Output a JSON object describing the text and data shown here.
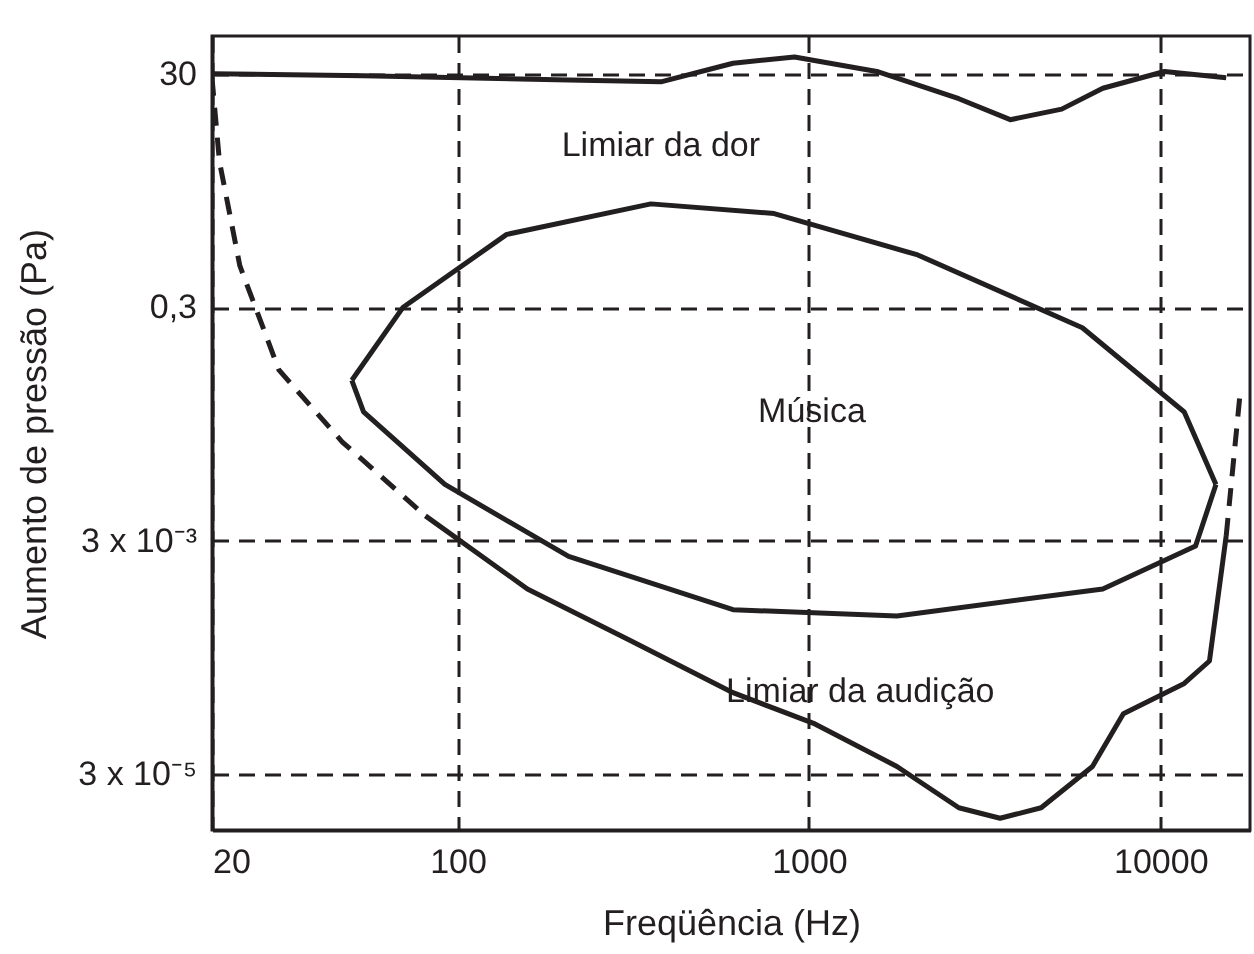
{
  "chart_data": {
    "type": "line",
    "xlabel": "Freqüência (Hz)",
    "ylabel": "Aumento de pressão (Pa)",
    "log": "xy",
    "grid": true,
    "marker": "none",
    "xlim": [
      20,
      18000
    ],
    "xticks": [
      20,
      100,
      1000,
      10000
    ],
    "ylim": [
      1e-05,
      63
    ],
    "yticks": [
      {
        "value": 3e-05,
        "label": "3 x 10⁻⁵"
      },
      {
        "value": 0.003,
        "label": "3 x 10⁻³"
      },
      {
        "value": 0.3,
        "label": "0,3"
      },
      30
    ],
    "series": [
      {
        "color": "#231f20",
        "line_style": "solid",
        "x": [
          20,
          54,
          207,
          379,
          608,
          910,
          1560,
          2670,
          3740,
          5240,
          6860,
          10280,
          15400
        ],
        "values": [
          30,
          28.8,
          26.5,
          25.5,
          36.8,
          41.7,
          31.3,
          18.3,
          12.1,
          14.9,
          22.5,
          31.3,
          27.6
        ]
      },
      {
        "color": "#221f20",
        "line_style": "solid",
        "x": [
          50,
          70,
          138,
          355,
          796,
          2040,
          6000,
          11700,
          14400
        ],
        "values": [
          0.071,
          0.3,
          1.26,
          2.3,
          1.9,
          0.84,
          0.2,
          0.038,
          0.0091
        ]
      },
      {
        "color": "#222020",
        "line_style": "solid",
        "x": [
          50,
          54,
          92,
          207,
          608,
          1780,
          6860,
          12600,
          14400
        ],
        "values": [
          0.071,
          0.038,
          0.0091,
          0.0022,
          0.00077,
          0.00068,
          0.00116,
          0.0027,
          0.0091
        ]
      },
      {
        "color": "#231e20",
        "line_style": "dashed",
        "x": [
          20,
          21,
          24,
          31,
          47,
          81
        ],
        "values": [
          27.6,
          5.3,
          0.68,
          0.087,
          0.021,
          0.0049
        ]
      },
      {
        "color": "#231f1f",
        "line_style": "solid",
        "x": [
          81,
          158,
          310,
          608,
          1040,
          1780,
          2670,
          3500,
          4580,
          6410,
          7850,
          11700,
          13800,
          15400
        ],
        "values": [
          0.0049,
          0.00116,
          0.00042,
          0.00015,
          8.1e-05,
          3.5e-05,
          1.55e-05,
          1.26e-05,
          1.55e-05,
          3.5e-05,
          9.9e-05,
          0.00018,
          0.00028,
          0.0033
        ]
      },
      {
        "color": "#241f20",
        "line_style": "dashed",
        "x": [
          15400,
          16900
        ],
        "values": [
          0.0033,
          0.058
        ]
      }
    ],
    "annotations": [
      {
        "text": "Limiar da dor",
        "x": 379,
        "y": 25.5
      },
      "Música",
      {
        "text": "Limiar da audição",
        "x": 1400,
        "y": 5e-05
      }
    ]
  }
}
